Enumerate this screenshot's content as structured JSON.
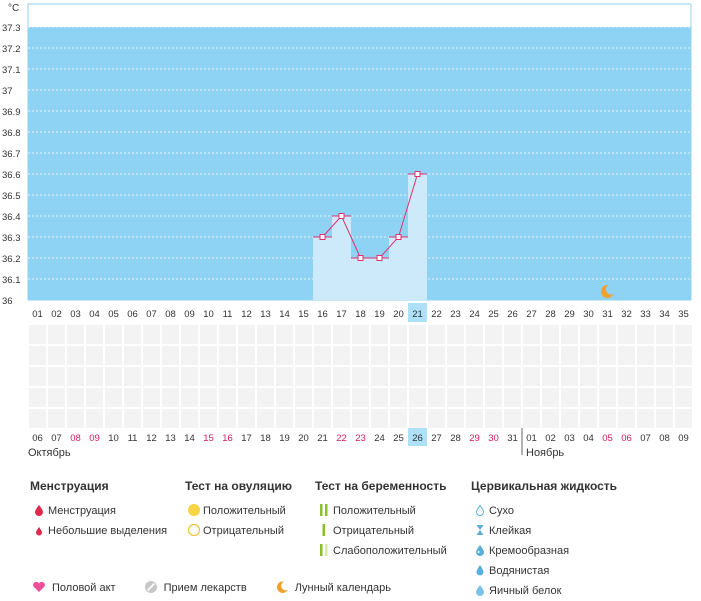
{
  "chart_data": {
    "type": "line",
    "y_unit": "°C",
    "ylim": [
      36.0,
      37.35
    ],
    "y_ticks": [
      "37.3",
      "37.2",
      "37.1",
      "37",
      "36.9",
      "36.8",
      "36.7",
      "36.6",
      "36.5",
      "36.4",
      "36.3",
      "36.2",
      "36.1",
      "36"
    ],
    "cycle_days": [
      "01",
      "02",
      "03",
      "04",
      "05",
      "06",
      "07",
      "08",
      "09",
      "10",
      "11",
      "12",
      "13",
      "14",
      "15",
      "16",
      "17",
      "18",
      "19",
      "20",
      "21",
      "22",
      "23",
      "24",
      "25",
      "26",
      "27",
      "28",
      "29",
      "30",
      "31",
      "32",
      "33",
      "34",
      "35"
    ],
    "highlight_cycle_day": "21",
    "temperatures": [
      {
        "day": 16,
        "value": 36.3
      },
      {
        "day": 17,
        "value": 36.4
      },
      {
        "day": 18,
        "value": 36.2
      },
      {
        "day": 19,
        "value": 36.2
      },
      {
        "day": 20,
        "value": 36.3
      },
      {
        "day": 21,
        "value": 36.6
      }
    ],
    "moon_marker_day": 31,
    "calendar_dates": [
      "06",
      "07",
      "08",
      "09",
      "10",
      "11",
      "12",
      "13",
      "14",
      "15",
      "16",
      "17",
      "18",
      "19",
      "20",
      "21",
      "22",
      "23",
      "24",
      "25",
      "26",
      "27",
      "28",
      "29",
      "30",
      "31",
      "01",
      "02",
      "03",
      "04",
      "05",
      "06",
      "07",
      "08",
      "09"
    ],
    "red_date_indices": [
      2,
      3,
      9,
      10,
      16,
      17,
      23,
      24,
      30,
      31
    ],
    "highlight_date_index": 20,
    "month_divider_index": 26,
    "months": [
      "Октябрь",
      "Ноябрь"
    ],
    "colors": {
      "band": "#8fd3f4",
      "fill": "#cdeafb",
      "line": "#e2306c",
      "highlight": "#aee0f7",
      "red_date": "#d0205a",
      "moon": "#f0a030"
    }
  },
  "legend": {
    "menstruation": {
      "title": "Менструация",
      "items": [
        "Менструация",
        "Небольшие выделения"
      ]
    },
    "ovulation": {
      "title": "Тест на овуляцию",
      "items": [
        "Положительный",
        "Отрицательный"
      ]
    },
    "pregnancy": {
      "title": "Тест на беременность",
      "items": [
        "Положительный",
        "Отрицательный",
        "Слабоположительный"
      ]
    },
    "cervical": {
      "title": "Цервикальная жидкость",
      "items": [
        "Сухо",
        "Клейкая",
        "Кремообразная",
        "Водянистая",
        "Яичный белок"
      ]
    },
    "bottom": [
      "Половой акт",
      "Прием лекарств",
      "Лунный календарь"
    ]
  }
}
